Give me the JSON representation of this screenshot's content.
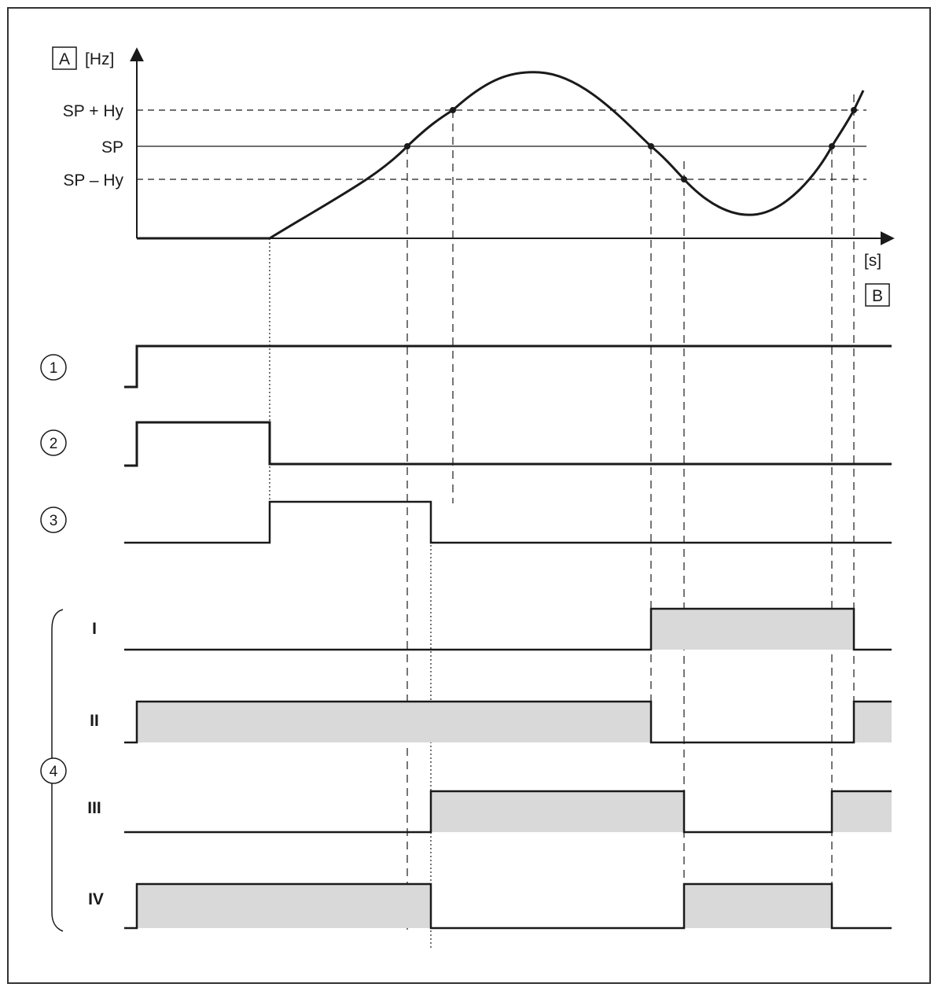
{
  "graph": {
    "axis_y_box": "A",
    "axis_y_unit": "[Hz]",
    "axis_x_unit": "[s]",
    "axis_x_box": "B",
    "levels": [
      {
        "id": "sp-plus-hy",
        "label": "SP + Hy",
        "style": "dashed"
      },
      {
        "id": "sp",
        "label": "SP",
        "style": "solid"
      },
      {
        "id": "sp-minus-hy",
        "label": "SP – Hy",
        "style": "dashed"
      }
    ]
  },
  "signals": {
    "one": "1",
    "two": "2",
    "three": "3",
    "four": "4",
    "outputs": [
      "I",
      "II",
      "III",
      "IV"
    ]
  },
  "colors": {
    "line": "#1a1a1a",
    "shade": "#d9d9d9",
    "border": "#333333"
  }
}
